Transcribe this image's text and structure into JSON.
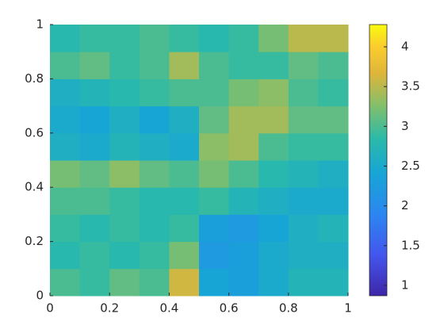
{
  "chart_data": {
    "type": "heatmap",
    "xlim": [
      0,
      1
    ],
    "ylim": [
      0,
      1
    ],
    "xticks": [
      0,
      0.2,
      0.4,
      0.6,
      0.8,
      1
    ],
    "yticks": [
      0,
      0.2,
      0.4,
      0.6,
      0.8,
      1
    ],
    "clim": [
      0.87,
      4.28
    ],
    "cticks": [
      1,
      1.5,
      2,
      2.5,
      3,
      3.5,
      4
    ],
    "colormap": "parula",
    "values": [
      [
        3.0,
        2.9,
        3.1,
        3.0,
        3.6,
        2.4,
        2.3,
        2.5,
        2.7,
        2.7
      ],
      [
        2.8,
        2.9,
        2.8,
        2.9,
        3.2,
        2.2,
        2.3,
        2.5,
        2.6,
        2.6
      ],
      [
        2.9,
        2.8,
        2.9,
        2.8,
        2.9,
        2.3,
        2.2,
        2.4,
        2.6,
        2.7
      ],
      [
        3.0,
        3.0,
        2.9,
        2.8,
        2.8,
        2.9,
        2.7,
        2.6,
        2.5,
        2.5
      ],
      [
        3.2,
        3.1,
        3.3,
        3.1,
        3.0,
        3.2,
        3.0,
        2.8,
        2.7,
        2.6
      ],
      [
        2.6,
        2.5,
        2.7,
        2.6,
        2.5,
        3.3,
        3.4,
        3.0,
        2.9,
        2.9
      ],
      [
        2.5,
        2.4,
        2.6,
        2.4,
        2.6,
        3.1,
        3.4,
        3.4,
        3.1,
        3.1
      ],
      [
        2.6,
        2.7,
        2.8,
        2.9,
        3.0,
        3.0,
        3.2,
        3.3,
        3.0,
        2.9
      ],
      [
        3.0,
        3.1,
        2.9,
        3.0,
        3.4,
        3.0,
        2.9,
        2.9,
        3.1,
        3.0
      ],
      [
        2.8,
        2.9,
        2.9,
        3.0,
        2.9,
        2.8,
        2.9,
        3.2,
        3.5,
        3.5
      ]
    ]
  }
}
